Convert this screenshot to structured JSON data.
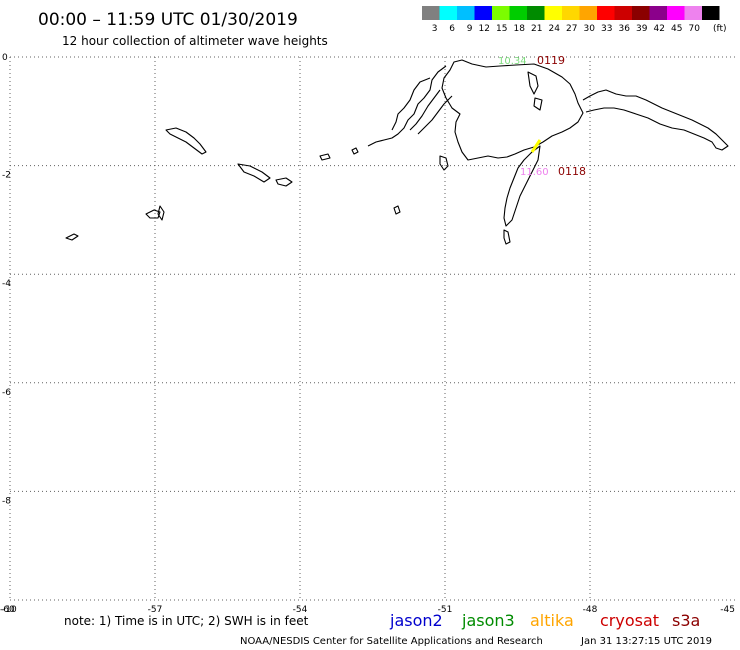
{
  "header": {
    "title": "00:00 – 11:59 UTC 01/30/2019",
    "subtitle": "12 hour collection of altimeter wave heights"
  },
  "legend": {
    "unit": "(ft)",
    "swatches": [
      {
        "label": "3",
        "color": "#808080"
      },
      {
        "label": "6",
        "color": "#00ffff"
      },
      {
        "label": "9",
        "color": "#00bfff"
      },
      {
        "label": "12",
        "color": "#0000ff"
      },
      {
        "label": "15",
        "color": "#7cfc00"
      },
      {
        "label": "18",
        "color": "#00cd00"
      },
      {
        "label": "21",
        "color": "#008b00"
      },
      {
        "label": "24",
        "color": "#ffff00"
      },
      {
        "label": "27",
        "color": "#ffd700"
      },
      {
        "label": "30",
        "color": "#ffa500"
      },
      {
        "label": "33",
        "color": "#ff0000"
      },
      {
        "label": "36",
        "color": "#cd0000"
      },
      {
        "label": "39",
        "color": "#8b0000"
      },
      {
        "label": "42",
        "color": "#8b008b"
      },
      {
        "label": "45",
        "color": "#ff00ff"
      },
      {
        "label": "70",
        "color": "#ee82ee"
      },
      {
        "label": "",
        "color": "#000000"
      }
    ]
  },
  "map": {
    "x_ticks": [
      "-60",
      "-57",
      "-54",
      "-51",
      "-48",
      "-45"
    ],
    "y_ticks": [
      "0",
      "-2",
      "-4",
      "-6",
      "-8",
      "-10"
    ],
    "grid_color": "#606060",
    "track_labels": [
      {
        "text": "10.34",
        "color": "#7fdc7f"
      },
      {
        "text": "0119",
        "color": "#8b0000"
      },
      {
        "text": "11.60",
        "color": "#ee82ee"
      },
      {
        "text": "0118",
        "color": "#8b0000"
      }
    ]
  },
  "footer": {
    "note": "note: 1) Time is in UTC; 2) SWH is in feet",
    "satellites": [
      {
        "name": "jason2",
        "color": "#0000cd"
      },
      {
        "name": "jason3",
        "color": "#008b00"
      },
      {
        "name": "altika",
        "color": "#ffa500"
      },
      {
        "name": "cryosat",
        "color": "#cd0000"
      },
      {
        "name": "s3a",
        "color": "#8b0000"
      }
    ],
    "credit": "NOAA/NESDIS Center for Satellite Applications and Research",
    "timestamp": "Jan 31 13:27:15 UTC 2019"
  }
}
